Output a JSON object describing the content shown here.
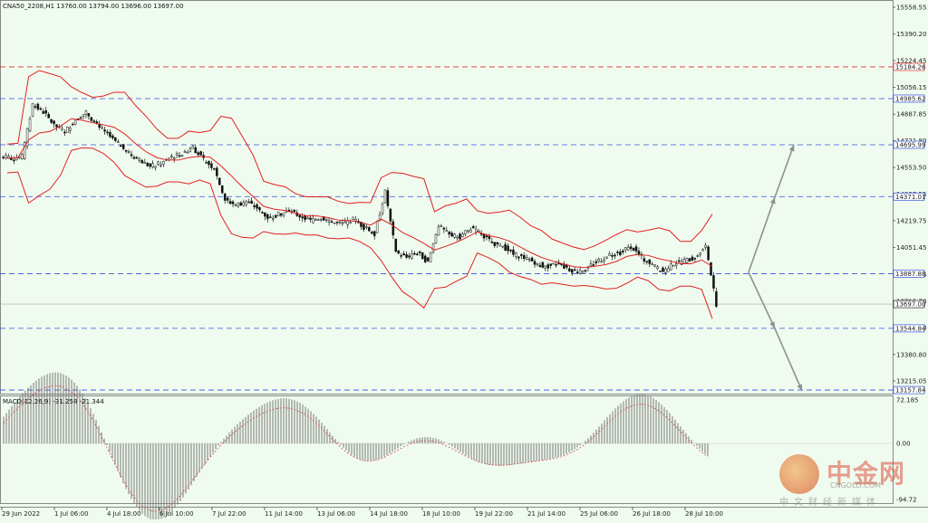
{
  "header": {
    "symbol_line": "CNA50_2208,H1  13760.00 13794.00 13696.00 13697.00"
  },
  "macd": {
    "label": "MACD(12,26,9) -31.258 -21.344",
    "scale": [
      "72.185",
      "0.00",
      "-94.72"
    ]
  },
  "price_scale": [
    "15558.55",
    "15390.20",
    "15224.45",
    "15056.15",
    "14887.85",
    "14721.80",
    "14553.50",
    "14387.55",
    "14219.75",
    "14051.45",
    "13883.15",
    "13715.70",
    "13548.50",
    "13380.80",
    "13215.05"
  ],
  "level_tags": [
    {
      "value": "15184.26",
      "color": "#e03030",
      "style": "red"
    },
    {
      "value": "14985.62",
      "color": "#3050e0",
      "style": "blue"
    },
    {
      "value": "14695.99",
      "color": "#3050e0",
      "style": "blue"
    },
    {
      "value": "14371.01",
      "color": "#3050e0",
      "style": "blue"
    },
    {
      "value": "13887.88",
      "color": "#3050e0",
      "style": "blue"
    },
    {
      "value": "13697.00",
      "color": "#000000",
      "style": "current"
    },
    {
      "value": "13544.84",
      "color": "#3050e0",
      "style": "blue"
    },
    {
      "value": "13157.84",
      "color": "#3050e0",
      "style": "blue"
    }
  ],
  "time_axis": [
    "29 Jun 2022",
    "1 Jul 06:00",
    "4 Jul 18:00",
    "6 Jul 10:00",
    "7 Jul 22:00",
    "11 Jul 14:00",
    "13 Jul 06:00",
    "14 Jul 18:00",
    "18 Jul 10:00",
    "19 Jul 22:00",
    "21 Jul 14:00",
    "25 Jul 06:00",
    "26 Jul 18:00",
    "28 Jul 10:00"
  ],
  "watermark": {
    "brand": "中金网",
    "domain": "CNGOLD.COM",
    "tagline": "中文财经新媒体"
  },
  "colors": {
    "background": "#f0fbef",
    "bollinger": "#e02020",
    "support_lines": "#3050e0",
    "resistance_line": "#e03030",
    "arrows": "#909090"
  },
  "chart_data": {
    "type": "candlestick",
    "symbol": "CNA50_2208",
    "timeframe": "H1",
    "last_ohlc": {
      "open": 13760.0,
      "high": 13794.0,
      "low": 13696.0,
      "close": 13697.0
    },
    "ylim": [
      13157.84,
      15558.55
    ],
    "series": [
      {
        "name": "Close (approx)",
        "values": [
          14610,
          14620,
          14950,
          14900,
          14820,
          14780,
          14850,
          14900,
          14820,
          14760,
          14700,
          14640,
          14600,
          14560,
          14580,
          14620,
          14640,
          14680,
          14600,
          14550,
          14350,
          14320,
          14340,
          14300,
          14240,
          14260,
          14280,
          14250,
          14220,
          14240,
          14210,
          14200,
          14230,
          14180,
          14140,
          14400,
          14020,
          13990,
          14020,
          13960,
          14190,
          14130,
          14120,
          14170,
          14140,
          14080,
          14060,
          14010,
          13990,
          13960,
          13930,
          13950,
          13920,
          13900,
          13930,
          13970,
          14000,
          14020,
          14060,
          13990,
          13940,
          13900,
          13950,
          13970,
          13990,
          14060,
          13697
        ]
      }
    ],
    "indicators": [
      "Bollinger Bands",
      "MACD(12,26,9)"
    ]
  }
}
